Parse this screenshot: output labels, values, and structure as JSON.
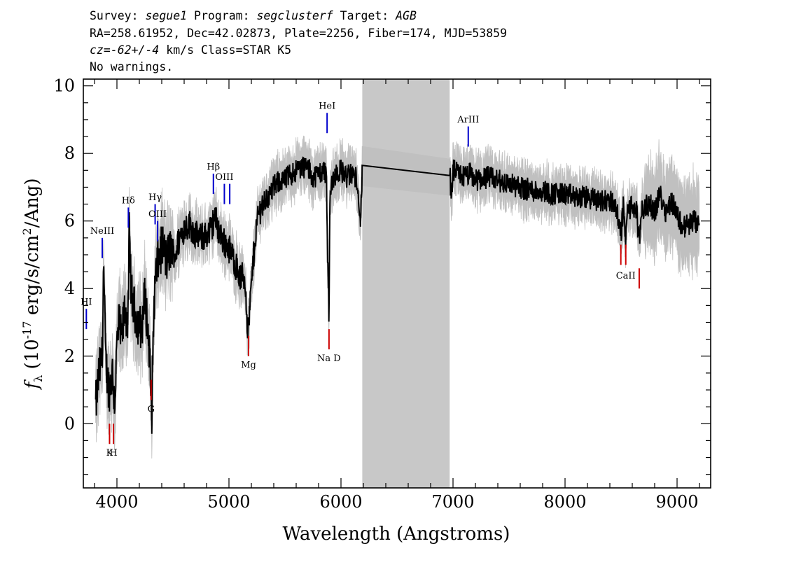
{
  "header": {
    "line1": [
      {
        "t": "Survey: ",
        "italic": false
      },
      {
        "t": "segue1",
        "italic": true
      },
      {
        "t": " Program: ",
        "italic": false
      },
      {
        "t": "segclusterf",
        "italic": true
      },
      {
        "t": " Target: ",
        "italic": false
      },
      {
        "t": "AGB",
        "italic": true
      }
    ],
    "line2": "RA=258.61952, Dec=42.02873, Plate=2256, Fiber=174, MJD=53859",
    "line3": [
      {
        "t": "cz=-62+/-4",
        "italic": true
      },
      {
        "t": " km/s Class=STAR K5",
        "italic": false
      }
    ],
    "line4": "No warnings."
  },
  "chart_data": {
    "type": "line",
    "xlabel": "Wavelength (Angstroms)",
    "ylabel": "f_λ (10^-17 erg/s/cm^2/Ang)",
    "xlim": [
      3700,
      9300
    ],
    "ylim": [
      -1.9,
      10.2
    ],
    "xticks": [
      4000,
      5000,
      6000,
      7000,
      8000,
      9000
    ],
    "xtick_labels": [
      "4000",
      "5000",
      "6000",
      "7000",
      "8000",
      "9000"
    ],
    "yticks": [
      0,
      2,
      4,
      6,
      8,
      10
    ],
    "ytick_labels": [
      "0",
      "2",
      "4",
      "6",
      "8",
      "10"
    ],
    "masked_region": [
      6190,
      6970
    ],
    "colors": {
      "flux": "#000000",
      "error": "#c0c0c0",
      "mask": "#c8c8c8",
      "emission": "#0000cc",
      "absorption": "#cc0000"
    },
    "spectrum": {
      "x": [
        3810,
        3840,
        3870,
        3880,
        3900,
        3930,
        3960,
        3980,
        4000,
        4020,
        4040,
        4070,
        4100,
        4110,
        4130,
        4160,
        4190,
        4220,
        4250,
        4270,
        4290,
        4310,
        4330,
        4350,
        4380,
        4410,
        4440,
        4480,
        4520,
        4560,
        4600,
        4650,
        4700,
        4750,
        4800,
        4850,
        4870,
        4900,
        4950,
        5000,
        5050,
        5100,
        5130,
        5150,
        5170,
        5190,
        5210,
        5230,
        5260,
        5300,
        5350,
        5400,
        5450,
        5500,
        5550,
        5600,
        5650,
        5700,
        5750,
        5800,
        5850,
        5870,
        5880,
        5893,
        5900,
        5920,
        5950,
        6000,
        6050,
        6100,
        6150,
        6170,
        6190,
        6970,
        6985,
        7000,
        7050,
        7100,
        7150,
        7200,
        7300,
        7400,
        7500,
        7600,
        7700,
        7800,
        7900,
        8000,
        8100,
        8200,
        8300,
        8400,
        8450,
        8498,
        8520,
        8542,
        8560,
        8600,
        8640,
        8662,
        8680,
        8750,
        8800,
        8850,
        8900,
        8950,
        9000,
        9050,
        9100,
        9150,
        9200
      ],
      "y": [
        0.5,
        1.5,
        2.0,
        4.8,
        1.8,
        1.0,
        1.5,
        0.6,
        2.3,
        3.0,
        2.4,
        3.4,
        3.0,
        5.6,
        3.8,
        3.3,
        3.0,
        2.8,
        3.8,
        3.0,
        2.2,
        0.2,
        3.5,
        4.5,
        5.0,
        5.3,
        4.8,
        5.2,
        5.0,
        5.5,
        5.8,
        5.9,
        5.6,
        5.5,
        5.6,
        5.8,
        6.2,
        5.8,
        5.4,
        5.2,
        4.8,
        4.3,
        4.4,
        4.0,
        2.6,
        3.6,
        4.5,
        5.4,
        6.2,
        6.5,
        6.7,
        7.0,
        7.2,
        7.2,
        7.4,
        7.5,
        7.6,
        7.6,
        7.3,
        7.4,
        7.5,
        7.4,
        5.0,
        3.2,
        6.5,
        7.2,
        7.4,
        7.5,
        7.3,
        7.4,
        7.2,
        5.8,
        7.4,
        7.6,
        6.5,
        7.5,
        7.4,
        7.3,
        7.4,
        7.2,
        7.3,
        7.2,
        7.1,
        7.0,
        6.9,
        6.9,
        6.8,
        6.8,
        6.7,
        6.7,
        6.6,
        6.6,
        6.5,
        5.6,
        6.4,
        5.4,
        6.4,
        6.4,
        6.3,
        5.2,
        6.3,
        6.5,
        6.3,
        6.8,
        6.3,
        6.6,
        6.2,
        5.8,
        5.9,
        6.0,
        5.8
      ]
    },
    "lines": [
      {
        "label": "NeIII",
        "wave": 3869,
        "kind": "emission",
        "y0": 4.9,
        "y1": 5.5,
        "ly": 5.62
      },
      {
        "label": "HI",
        "wave": 3727,
        "kind": "emission",
        "y0": 2.8,
        "y1": 3.4,
        "ly": 3.52
      },
      {
        "label": "Hδ",
        "wave": 4102,
        "kind": "emission",
        "y0": 5.8,
        "y1": 6.4,
        "ly": 6.52
      },
      {
        "label": "Hγ",
        "wave": 4341,
        "kind": "emission",
        "y0": 5.9,
        "y1": 6.5,
        "ly": 6.62
      },
      {
        "label": "OIII",
        "wave": 4363,
        "kind": "emission",
        "y0": 5.4,
        "y1": 6.0,
        "ly": 6.12
      },
      {
        "label": "Hβ",
        "wave": 4861,
        "kind": "emission",
        "y0": 6.8,
        "y1": 7.4,
        "ly": 7.52
      },
      {
        "label": "OIII",
        "wave": 4959,
        "kind": "emission",
        "y0": 6.5,
        "y1": 7.1,
        "ly": 7.22
      },
      {
        "label": "",
        "wave": 5007,
        "kind": "emission",
        "y0": 6.5,
        "y1": 7.1,
        "ly": 7.22
      },
      {
        "label": "HeI",
        "wave": 5876,
        "kind": "emission",
        "y0": 8.6,
        "y1": 9.2,
        "ly": 9.32
      },
      {
        "label": "ArIII",
        "wave": 7136,
        "kind": "emission",
        "y0": 8.2,
        "y1": 8.8,
        "ly": 8.92
      },
      {
        "label": "K",
        "wave": 3934,
        "kind": "absorption",
        "y0": -0.6,
        "y1": 0.0,
        "ly": -0.95
      },
      {
        "label": "H",
        "wave": 3969,
        "kind": "absorption",
        "y0": -0.6,
        "y1": 0.0,
        "ly": -0.95
      },
      {
        "label": "G",
        "wave": 4305,
        "kind": "absorption",
        "y0": 0.7,
        "y1": 1.3,
        "ly": 0.35
      },
      {
        "label": "Mg",
        "wave": 5175,
        "kind": "absorption",
        "y0": 2.0,
        "y1": 2.6,
        "ly": 1.65
      },
      {
        "label": "Na D",
        "wave": 5893,
        "kind": "absorption",
        "y0": 2.2,
        "y1": 2.8,
        "ly": 1.85
      },
      {
        "label": "",
        "wave": 8498,
        "kind": "absorption",
        "y0": 4.7,
        "y1": 5.3,
        "ly": 4.3
      },
      {
        "label": "CaII",
        "wave": 8542,
        "kind": "absorption",
        "y0": 4.7,
        "y1": 5.3,
        "ly": 4.3
      },
      {
        "label": "",
        "wave": 8662,
        "kind": "absorption",
        "y0": 4.0,
        "y1": 4.6,
        "ly": 4.3
      }
    ]
  }
}
